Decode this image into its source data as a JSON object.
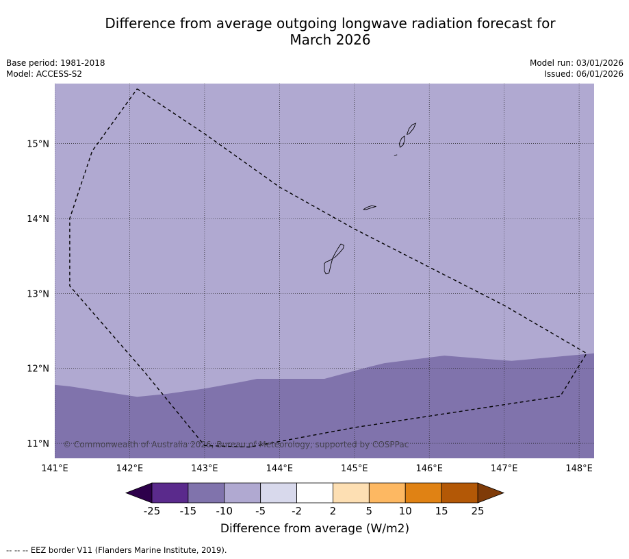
{
  "title": {
    "line1": "Difference from average outgoing longwave radiation forecast for",
    "line2": "March 2026"
  },
  "meta_left": {
    "base_period": "Base period: 1981-2018",
    "model": "Model: ACCESS-S2"
  },
  "meta_right": {
    "model_run": "Model run: 03/01/2026",
    "issued": "Issued: 06/01/2026"
  },
  "map": {
    "lon_range": [
      141.0,
      148.2
    ],
    "lat_range": [
      10.8,
      15.8
    ],
    "lon_ticks": [
      141,
      142,
      143,
      144,
      145,
      146,
      147,
      148
    ],
    "lon_tick_labels": [
      "141°E",
      "142°E",
      "143°E",
      "144°E",
      "145°E",
      "146°E",
      "147°E",
      "148°E"
    ],
    "lat_ticks": [
      11,
      12,
      13,
      14,
      15
    ],
    "lat_tick_labels": [
      "11°N",
      "12°N",
      "13°N",
      "14°N",
      "15°N"
    ],
    "anomaly_bins": [
      {
        "range": "-10 to -5",
        "color": "#b0a9d1"
      },
      {
        "range": "-15 to -10",
        "color": "#8073ac"
      }
    ],
    "boundary_between_bins": [
      [
        141.0,
        11.78
      ],
      [
        141.2,
        11.76
      ],
      [
        142.1,
        11.62
      ],
      [
        142.5,
        11.66
      ],
      [
        143.0,
        11.73
      ],
      [
        143.5,
        11.82
      ],
      [
        143.7,
        11.86
      ],
      [
        144.6,
        11.86
      ],
      [
        145.2,
        12.02
      ],
      [
        145.4,
        12.07
      ],
      [
        146.2,
        12.17
      ],
      [
        146.7,
        12.13
      ],
      [
        147.1,
        12.1
      ],
      [
        148.2,
        12.2
      ]
    ],
    "eez_border": [
      [
        142.1,
        15.73
      ],
      [
        143.0,
        15.13
      ],
      [
        144.0,
        14.42
      ],
      [
        145.0,
        13.86
      ],
      [
        146.0,
        13.35
      ],
      [
        147.0,
        12.84
      ],
      [
        148.1,
        12.2
      ],
      [
        147.75,
        11.63
      ],
      [
        145.0,
        11.21
      ],
      [
        143.6,
        10.95
      ],
      [
        143.0,
        10.97
      ],
      [
        142.2,
        11.95
      ],
      [
        141.2,
        13.1
      ],
      [
        141.2,
        14.0
      ],
      [
        141.5,
        14.9
      ],
      [
        142.1,
        15.73
      ]
    ],
    "islands": [
      {
        "name": "Guam",
        "outline": [
          [
            144.62,
            13.42
          ],
          [
            144.67,
            13.44
          ],
          [
            144.75,
            13.49
          ],
          [
            144.8,
            13.54
          ],
          [
            144.85,
            13.6
          ],
          [
            144.86,
            13.64
          ],
          [
            144.82,
            13.66
          ],
          [
            144.78,
            13.6
          ],
          [
            144.74,
            13.53
          ],
          [
            144.71,
            13.47
          ],
          [
            144.69,
            13.4
          ],
          [
            144.66,
            13.27
          ],
          [
            144.62,
            13.26
          ],
          [
            144.6,
            13.3
          ],
          [
            144.6,
            13.4
          ],
          [
            144.62,
            13.42
          ]
        ]
      },
      {
        "name": "Rota",
        "outline": [
          [
            145.12,
            14.12
          ],
          [
            145.17,
            14.15
          ],
          [
            145.23,
            14.17
          ],
          [
            145.29,
            14.16
          ],
          [
            145.22,
            14.14
          ],
          [
            145.16,
            14.12
          ],
          [
            145.12,
            14.12
          ]
        ]
      },
      {
        "name": "Tinian",
        "outline": [
          [
            145.6,
            15.0
          ],
          [
            145.63,
            15.07
          ],
          [
            145.67,
            15.1
          ],
          [
            145.67,
            15.04
          ],
          [
            145.65,
            14.98
          ],
          [
            145.61,
            14.95
          ],
          [
            145.6,
            15.0
          ]
        ]
      },
      {
        "name": "Saipan",
        "outline": [
          [
            145.7,
            15.12
          ],
          [
            145.73,
            15.2
          ],
          [
            145.77,
            15.25
          ],
          [
            145.82,
            15.27
          ],
          [
            145.79,
            15.2
          ],
          [
            145.73,
            15.13
          ],
          [
            145.7,
            15.12
          ]
        ]
      },
      {
        "name": "Aguijan",
        "outline": [
          [
            145.53,
            14.84
          ],
          [
            145.57,
            14.85
          ]
        ]
      }
    ]
  },
  "copyright": "© Commonwealth of Australia 2026, Bureau of Meteorology, supported by COSPPac",
  "colorbar": {
    "title": "Difference from average (W/m2)",
    "boundaries": [
      "-25",
      "-15",
      "-10",
      "-5",
      "-2",
      "2",
      "5",
      "10",
      "15",
      "25"
    ],
    "colors": [
      "#5a2a8c",
      "#8073ac",
      "#b0a9d1",
      "#d8d9ec",
      "#ffffff",
      "#fddfb3",
      "#fdb862",
      "#e08214",
      "#b35806"
    ],
    "under_color": "#2d004b",
    "over_color": "#7f3b08"
  },
  "footnote": "--  --  -- EEZ border V11 (Flanders Marine Institute, 2019)."
}
